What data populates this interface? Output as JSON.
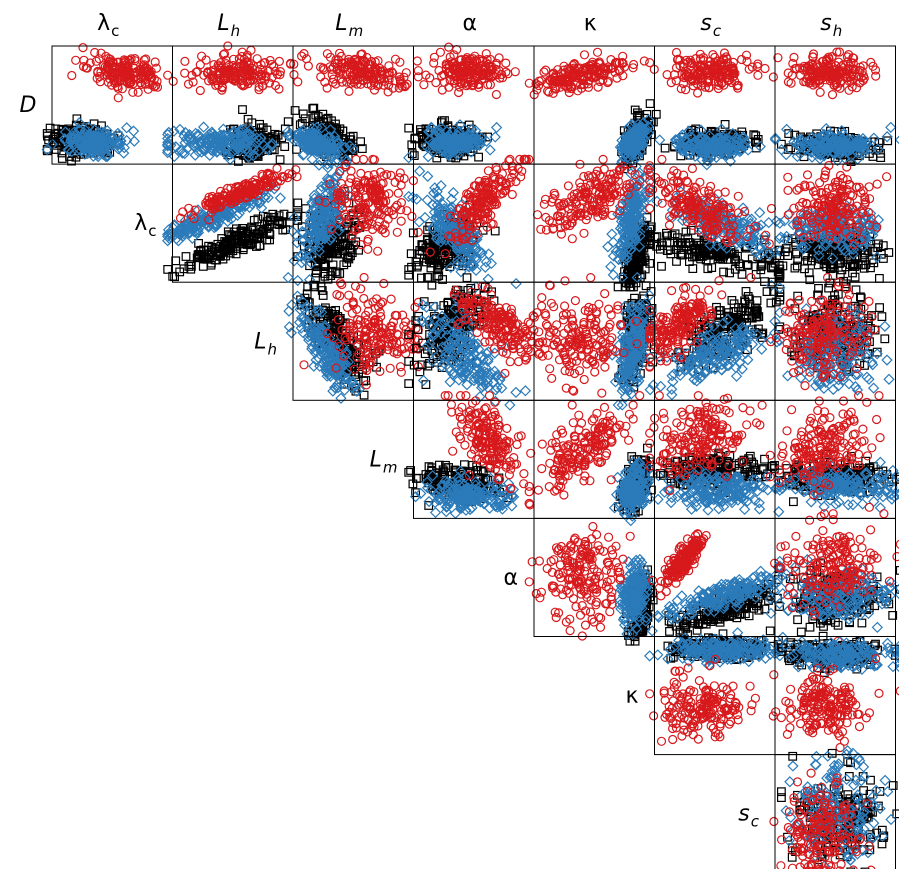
{
  "chart_data": {
    "type": "scatter",
    "layout": "upper-triangular scatterplot matrix",
    "column_labels": [
      {
        "id": "lc",
        "main": "λ",
        "sub": "c"
      },
      {
        "id": "Lh",
        "main": "L",
        "sub": "h",
        "italic": true
      },
      {
        "id": "Lm",
        "main": "L",
        "sub": "m",
        "italic": true
      },
      {
        "id": "alpha",
        "main": "α"
      },
      {
        "id": "kappa",
        "main": "κ"
      },
      {
        "id": "sc",
        "main": "s",
        "sub": "c",
        "italic": true
      },
      {
        "id": "sh",
        "main": "s",
        "sub": "h",
        "italic": true
      }
    ],
    "row_labels": [
      {
        "id": "D",
        "main": "D",
        "italic": true
      },
      {
        "id": "lc",
        "main": "λ",
        "sub": "c"
      },
      {
        "id": "Lh",
        "main": "L",
        "sub": "h",
        "italic": true
      },
      {
        "id": "Lm",
        "main": "L",
        "sub": "m",
        "italic": true
      },
      {
        "id": "alpha",
        "main": "α"
      },
      {
        "id": "kappa",
        "main": "κ"
      },
      {
        "id": "sc",
        "main": "s",
        "sub": "c",
        "italic": true
      }
    ],
    "series": [
      {
        "marker": "circle",
        "color": "#d7191c"
      },
      {
        "marker": "square",
        "color": "#000000"
      },
      {
        "marker": "diamond",
        "color": "#2b7bba"
      }
    ],
    "axis_ticks": false,
    "grid": false
  }
}
